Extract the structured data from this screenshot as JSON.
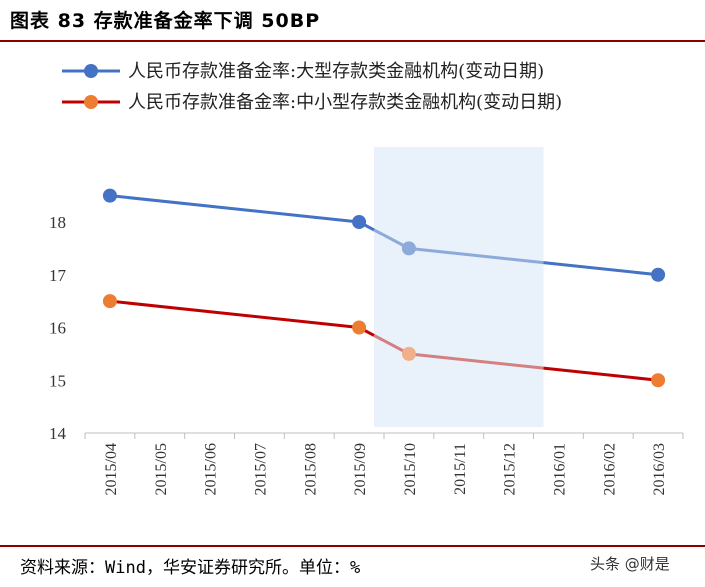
{
  "figure": {
    "title": "图表 83 存款准备金率下调 50BP",
    "source": "资料来源：Wind，华安证券研究所。单位：%",
    "watermark": "头条 @财是"
  },
  "colors": {
    "series1": "#4472c4",
    "series1_light": "#8eaadb",
    "series2": "#c00000",
    "series2_light": "#d48080",
    "marker2": "#ed7d31",
    "marker2_light": "#f1b08a",
    "highlight": "#e9f1fb",
    "rule": "#8b0000"
  },
  "chart_data": {
    "type": "line",
    "title": "",
    "xlabel": "",
    "ylabel": "",
    "categories": [
      "2015/04",
      "2015/05",
      "2015/06",
      "2015/07",
      "2015/08",
      "2015/09",
      "2015/10",
      "2015/11",
      "2015/12",
      "2016/01",
      "2016/02",
      "2016/03"
    ],
    "ylim": [
      14,
      18.5
    ],
    "yticks": [
      14,
      15,
      16,
      17,
      18
    ],
    "highlight_range": [
      "2015/10",
      "2015/12"
    ],
    "series": [
      {
        "name": "人民币存款准备金率:大型存款类金融机构(变动日期)",
        "points": [
          {
            "x": "2015/04",
            "y": 18.5
          },
          {
            "x": "2015/09",
            "y": 18.0
          },
          {
            "x": "2015/10",
            "y": 17.5
          },
          {
            "x": "2016/03",
            "y": 17.0
          }
        ]
      },
      {
        "name": "人民币存款准备金率:中小型存款类金融机构(变动日期)",
        "points": [
          {
            "x": "2015/04",
            "y": 16.5
          },
          {
            "x": "2015/09",
            "y": 16.0
          },
          {
            "x": "2015/10",
            "y": 15.5
          },
          {
            "x": "2016/03",
            "y": 15.0
          }
        ]
      }
    ]
  }
}
